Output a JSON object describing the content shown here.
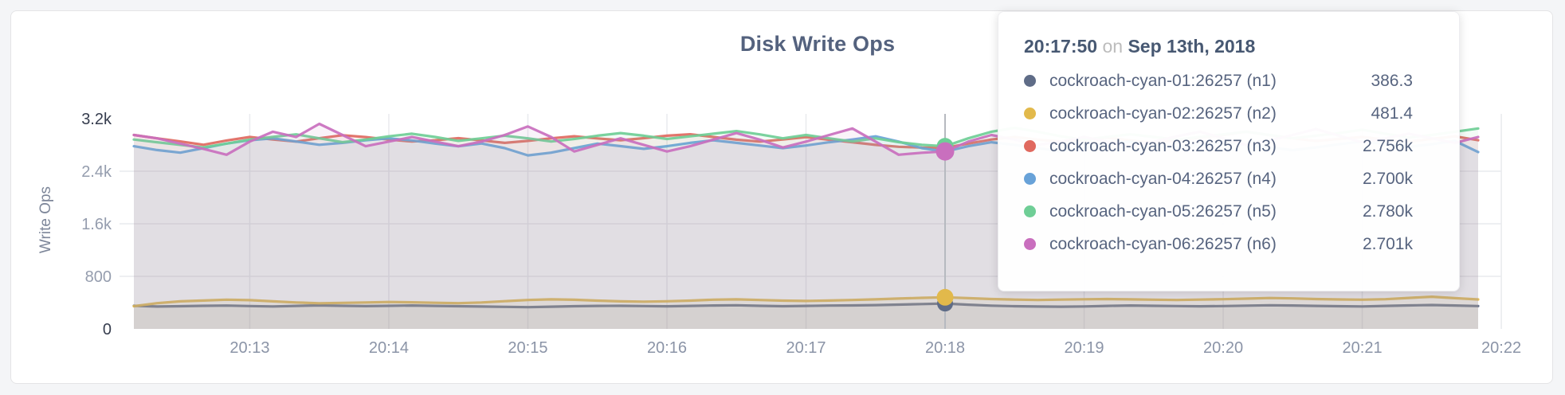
{
  "page": {
    "background": "#f4f5f7",
    "card_background": "#ffffff"
  },
  "chart_data": {
    "type": "line",
    "title": "Disk Write Ops",
    "xlabel": "",
    "ylabel": "Write Ops",
    "ylim": [
      0,
      3200
    ],
    "grid": true,
    "legend_position": "tooltip-overlay",
    "y_axis": {
      "ticks": [
        {
          "value": 0,
          "label": "0",
          "emphasis": true
        },
        {
          "value": 800,
          "label": "800",
          "emphasis": false
        },
        {
          "value": 1600,
          "label": "1.6k",
          "emphasis": false
        },
        {
          "value": 2400,
          "label": "2.4k",
          "emphasis": false
        },
        {
          "value": 3200,
          "label": "3.2k",
          "emphasis": true
        }
      ]
    },
    "x_axis": {
      "ticks": [
        {
          "label": "20:13",
          "index": 5
        },
        {
          "label": "20:14",
          "index": 11
        },
        {
          "label": "20:15",
          "index": 17
        },
        {
          "label": "20:16",
          "index": 23
        },
        {
          "label": "20:17",
          "index": 29
        },
        {
          "label": "20:18",
          "index": 35
        },
        {
          "label": "20:19",
          "index": 41
        },
        {
          "label": "20:20",
          "index": 47
        },
        {
          "label": "20:21",
          "index": 53
        },
        {
          "label": "20:22",
          "index": 59
        }
      ]
    },
    "hover_index": 35,
    "hover_time": "20:17:50",
    "series": [
      {
        "name": "cockroach-cyan-01:26257 (n1)",
        "color": "#5f6c87",
        "hover_dot_radius": 10,
        "values": [
          352,
          341,
          346,
          351,
          355,
          348,
          342,
          350,
          358,
          352,
          347,
          352,
          356,
          350,
          345,
          340,
          336,
          331,
          338,
          345,
          350,
          352,
          348,
          344,
          350,
          356,
          360,
          352,
          346,
          350,
          355,
          358,
          362,
          370,
          378,
          386.3,
          368,
          354,
          345,
          340,
          338,
          342,
          350,
          356,
          352,
          348,
          344,
          348,
          354,
          360,
          356,
          350,
          346,
          342,
          350,
          358,
          364,
          356,
          348
        ]
      },
      {
        "name": "cockroach-cyan-02:26257 (n2)",
        "color": "#e2b94b",
        "hover_dot_radius": 10.5,
        "values": [
          345,
          392,
          420,
          432,
          445,
          438,
          420,
          402,
          390,
          396,
          402,
          410,
          405,
          398,
          392,
          402,
          422,
          440,
          450,
          444,
          430,
          420,
          415,
          421,
          430,
          445,
          450,
          440,
          430,
          425,
          431,
          440,
          450,
          462,
          473,
          481.4,
          468,
          455,
          446,
          440,
          446,
          451,
          455,
          450,
          445,
          440,
          446,
          452,
          461,
          470,
          464,
          455,
          449,
          445,
          452,
          472,
          490,
          468,
          448
        ]
      },
      {
        "name": "cockroach-cyan-03:26257 (n3)",
        "color": "#e0695f",
        "hover_dot_radius": 10.5,
        "values": [
          2952,
          2901,
          2853,
          2802,
          2868,
          2921,
          2882,
          2851,
          2902,
          2948,
          2920,
          2881,
          2852,
          2872,
          2903,
          2869,
          2831,
          2862,
          2901,
          2932,
          2899,
          2872,
          2903,
          2941,
          2962,
          2921,
          2880,
          2851,
          2882,
          2920,
          2879,
          2841,
          2801,
          2772,
          2760,
          2756,
          2821,
          2882,
          2921,
          2880,
          2852,
          2881,
          2912,
          2869,
          2832,
          2872,
          2911,
          2952,
          3002,
          2949,
          2901,
          2861,
          2892,
          2921,
          2881,
          2851,
          2892,
          2931,
          2872
        ]
      },
      {
        "name": "cockroach-cyan-04:26257 (n4)",
        "color": "#68a2d8",
        "hover_dot_radius": 10,
        "values": [
          2781,
          2722,
          2683,
          2752,
          2821,
          2872,
          2901,
          2852,
          2802,
          2831,
          2872,
          2901,
          2869,
          2821,
          2781,
          2822,
          2752,
          2641,
          2682,
          2751,
          2821,
          2782,
          2741,
          2781,
          2832,
          2871,
          2831,
          2791,
          2752,
          2792,
          2841,
          2882,
          2931,
          2851,
          2752,
          2700,
          2781,
          2841,
          2801,
          2752,
          2701,
          2752,
          2811,
          2852,
          2801,
          2762,
          2801,
          2841,
          2801,
          2762,
          2721,
          2762,
          2811,
          2852,
          2811,
          2772,
          2811,
          2861,
          2692
        ]
      },
      {
        "name": "cockroach-cyan-05:26257 (n5)",
        "color": "#6fce96",
        "hover_dot_radius": 10.5,
        "values": [
          2882,
          2841,
          2801,
          2762,
          2821,
          2881,
          2922,
          2961,
          2901,
          2842,
          2881,
          2931,
          2971,
          2921,
          2862,
          2901,
          2941,
          2901,
          2852,
          2891,
          2941,
          2981,
          2941,
          2891,
          2931,
          2971,
          3011,
          2961,
          2901,
          2951,
          2901,
          2852,
          2901,
          2842,
          2801,
          2780,
          2901,
          3001,
          3061,
          3001,
          2931,
          2881,
          2921,
          2961,
          2921,
          2881,
          2921,
          2961,
          3001,
          2951,
          2901,
          2941,
          2981,
          3031,
          2971,
          2911,
          2951,
          3001,
          3051
        ]
      },
      {
        "name": "cockroach-cyan-06:26257 (n6)",
        "color": "#c96fbe",
        "hover_dot_radius": 11.5,
        "values": [
          2951,
          2901,
          2821,
          2741,
          2651,
          2851,
          3001,
          2921,
          3121,
          2951,
          2781,
          2851,
          2921,
          2851,
          2781,
          2851,
          2951,
          3081,
          2921,
          2701,
          2801,
          2901,
          2801,
          2701,
          2781,
          2881,
          2981,
          2881,
          2761,
          2851,
          2951,
          3051,
          2851,
          2651,
          2681,
          2701,
          2851,
          2951,
          2881,
          2801,
          2851,
          2921,
          2851,
          2781,
          2851,
          2931,
          3001,
          2901,
          2801,
          2871,
          2951,
          3041,
          2941,
          2841,
          2901,
          2971,
          2901,
          2831,
          2921
        ]
      }
    ]
  },
  "tooltip": {
    "time": "20:17:50",
    "conjunction": "on",
    "date": "Sep 13th, 2018",
    "rows": [
      {
        "label": "cockroach-cyan-01:26257 (n1)",
        "value": "386.3",
        "color": "#5f6c87"
      },
      {
        "label": "cockroach-cyan-02:26257 (n2)",
        "value": "481.4",
        "color": "#e2b94b"
      },
      {
        "label": "cockroach-cyan-03:26257 (n3)",
        "value": "2.756k",
        "color": "#e0695f"
      },
      {
        "label": "cockroach-cyan-04:26257 (n4)",
        "value": "2.700k",
        "color": "#68a2d8"
      },
      {
        "label": "cockroach-cyan-05:26257 (n5)",
        "value": "2.780k",
        "color": "#6fce96"
      },
      {
        "label": "cockroach-cyan-06:26257 (n6)",
        "value": "2.701k",
        "color": "#c96fbe"
      }
    ]
  },
  "style": {
    "gridline_color": "#e9eaee",
    "hover_line_color": "#b6b9bf",
    "x_tick_color": "#8b94a7",
    "y_tick_color": "#959dae",
    "y_tick_emphasis_color": "#363d4e",
    "area_fill_opacity": 0.085,
    "line_opacity": 0.92
  }
}
